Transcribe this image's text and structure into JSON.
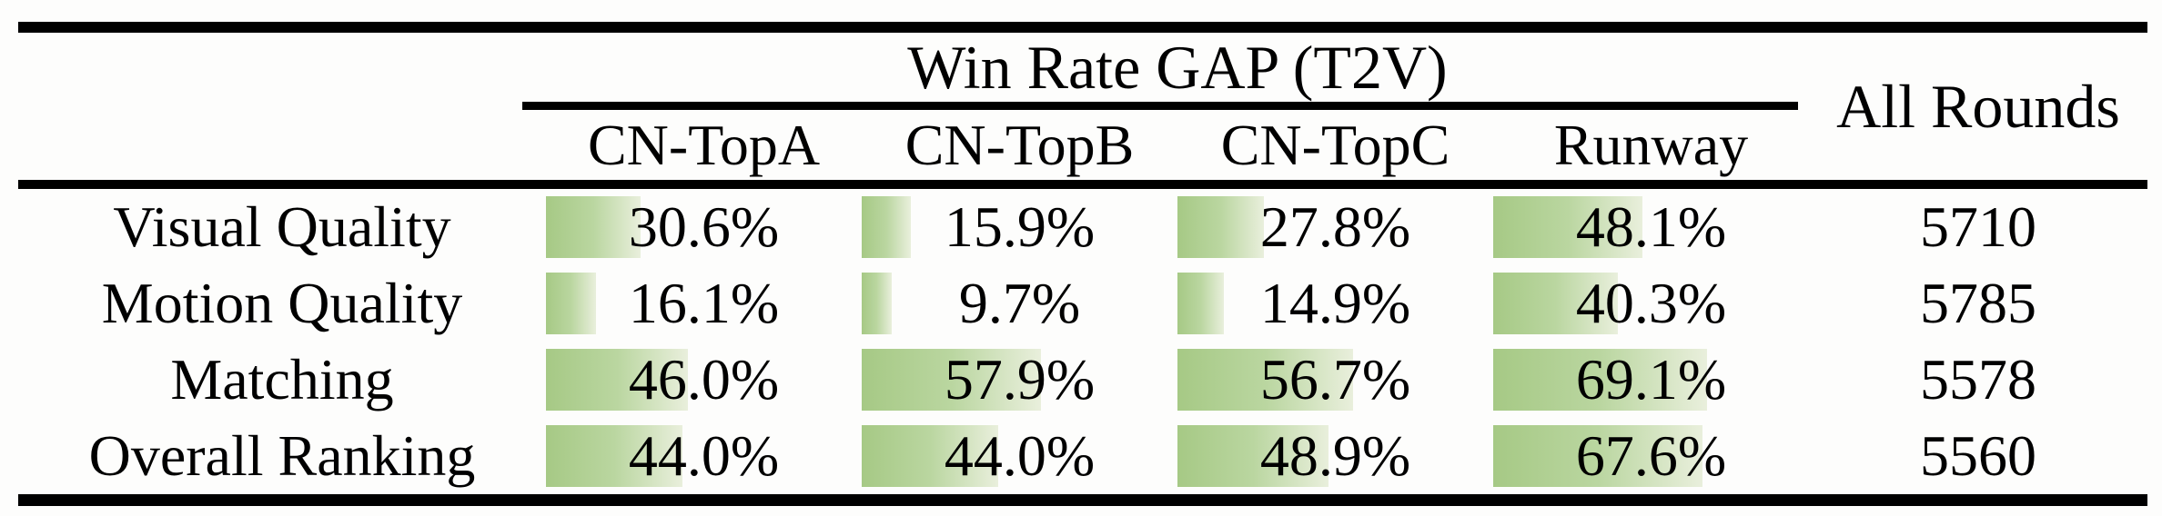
{
  "table": {
    "group_header": "Win Rate GAP (T2V)",
    "all_rounds_header": "All Rounds",
    "t2v_columns": [
      "CN-TopA",
      "CN-TopB",
      "CN-TopC",
      "Runway"
    ],
    "rows": [
      {
        "label": "Visual Quality",
        "values": [
          30.6,
          15.9,
          27.8,
          48.1
        ],
        "display": [
          "30.6%",
          "15.9%",
          "27.8%",
          "48.1%"
        ],
        "all_rounds": "5710"
      },
      {
        "label": "Motion Quality",
        "values": [
          16.1,
          9.7,
          14.9,
          40.3
        ],
        "display": [
          "16.1%",
          "9.7%",
          "14.9%",
          "40.3%"
        ],
        "all_rounds": "5785"
      },
      {
        "label": "Matching",
        "values": [
          46.0,
          57.9,
          56.7,
          69.1
        ],
        "display": [
          "46.0%",
          "57.9%",
          "56.7%",
          "69.1%"
        ],
        "all_rounds": "5578"
      },
      {
        "label": "Overall Ranking",
        "values": [
          44.0,
          44.0,
          48.9,
          67.6
        ],
        "display": [
          "44.0%",
          "44.0%",
          "48.9%",
          "67.6%"
        ],
        "all_rounds": "5560"
      }
    ],
    "bar_gradient": {
      "start": "#a6c985",
      "mid": "#bad6a0",
      "end": "#e9efdc"
    },
    "rule_color": "#000000"
  },
  "chart_data": {
    "type": "table",
    "title": "Win Rate GAP (T2V)",
    "categories": [
      "Visual Quality",
      "Motion Quality",
      "Matching",
      "Overall Ranking"
    ],
    "series": [
      {
        "name": "CN-TopA",
        "values": [
          30.6,
          16.1,
          46.0,
          44.0
        ]
      },
      {
        "name": "CN-TopB",
        "values": [
          15.9,
          9.7,
          57.9,
          44.0
        ]
      },
      {
        "name": "CN-TopC",
        "values": [
          27.8,
          14.9,
          56.7,
          48.9
        ]
      },
      {
        "name": "Runway",
        "values": [
          48.1,
          40.3,
          69.1,
          67.6
        ]
      },
      {
        "name": "All Rounds",
        "values": [
          5710,
          5785,
          5578,
          5560
        ]
      }
    ],
    "value_unit_t2v": "%",
    "bar_scale": "cell-embedded horizontal bars, width proportional to percentage (100% ≈ full cell width)",
    "legend_position": "none",
    "grid": false
  }
}
